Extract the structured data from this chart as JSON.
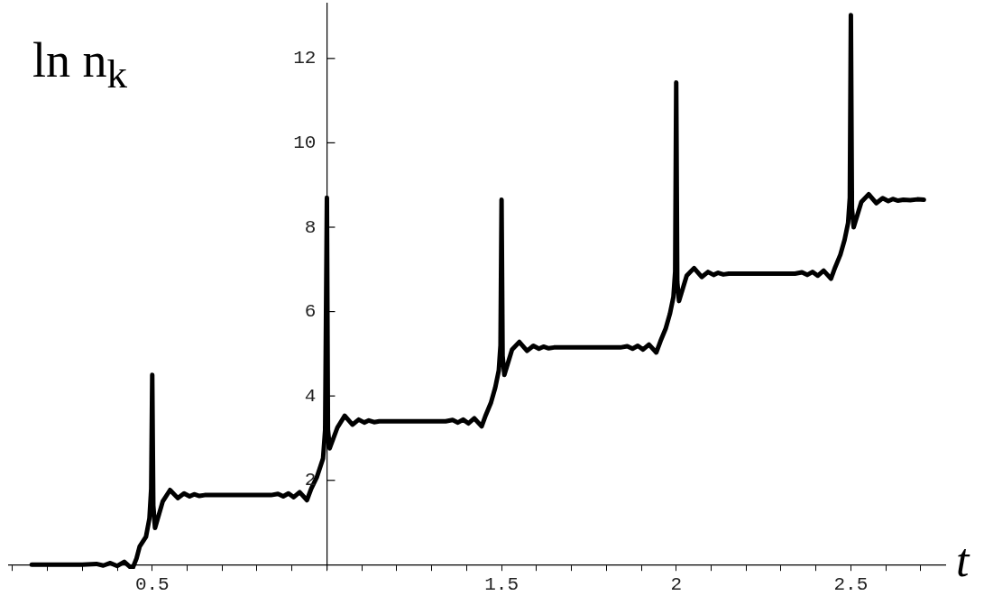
{
  "chart_data": {
    "type": "line",
    "xlabel": "t",
    "ylabel": "ln n$_{k}$",
    "x": [
      0.155,
      0.2,
      0.25,
      0.3,
      0.34,
      0.36,
      0.38,
      0.4,
      0.42,
      0.443,
      0.455,
      0.464,
      0.482,
      0.492,
      0.497,
      0.5,
      0.503,
      0.508,
      0.53,
      0.551,
      0.573,
      0.591,
      0.607,
      0.62,
      0.635,
      0.65,
      0.75,
      0.84,
      0.86,
      0.875,
      0.89,
      0.905,
      0.922,
      0.943,
      0.955,
      0.971,
      0.989,
      0.995,
      1.0,
      1.003,
      1.008,
      1.03,
      1.051,
      1.073,
      1.091,
      1.107,
      1.12,
      1.135,
      1.15,
      1.25,
      1.34,
      1.36,
      1.375,
      1.39,
      1.405,
      1.422,
      1.443,
      1.455,
      1.47,
      1.482,
      1.492,
      1.497,
      1.5,
      1.503,
      1.508,
      1.53,
      1.551,
      1.573,
      1.591,
      1.607,
      1.62,
      1.635,
      1.65,
      1.75,
      1.84,
      1.86,
      1.875,
      1.89,
      1.905,
      1.922,
      1.943,
      1.955,
      1.97,
      1.982,
      1.992,
      1.997,
      2.0,
      2.003,
      2.008,
      2.03,
      2.051,
      2.073,
      2.091,
      2.107,
      2.12,
      2.135,
      2.15,
      2.25,
      2.34,
      2.36,
      2.375,
      2.39,
      2.405,
      2.422,
      2.443,
      2.455,
      2.47,
      2.482,
      2.492,
      2.497,
      2.5,
      2.503,
      2.508,
      2.53,
      2.551,
      2.573,
      2.591,
      2.607,
      2.62,
      2.635,
      2.65,
      2.67,
      2.69,
      2.709
    ],
    "series": [
      {
        "color": "#000000",
        "values": [
          0,
          0,
          0,
          0,
          0.02,
          -0.02,
          0.04,
          -0.03,
          0.07,
          -0.1,
          0.15,
          0.43,
          0.66,
          1.1,
          1.8,
          4.5,
          1.4,
          0.87,
          1.5,
          1.77,
          1.58,
          1.69,
          1.62,
          1.67,
          1.63,
          1.65,
          1.65,
          1.65,
          1.68,
          1.62,
          1.69,
          1.6,
          1.72,
          1.53,
          1.8,
          2.07,
          2.52,
          3.2,
          8.7,
          3.2,
          2.76,
          3.25,
          3.53,
          3.32,
          3.44,
          3.37,
          3.42,
          3.38,
          3.4,
          3.4,
          3.4,
          3.43,
          3.37,
          3.44,
          3.35,
          3.47,
          3.28,
          3.55,
          3.85,
          4.2,
          4.6,
          5.2,
          8.65,
          4.95,
          4.5,
          5.1,
          5.28,
          5.07,
          5.19,
          5.12,
          5.17,
          5.13,
          5.15,
          5.15,
          5.15,
          5.18,
          5.12,
          5.19,
          5.1,
          5.22,
          5.03,
          5.3,
          5.6,
          5.95,
          6.35,
          6.95,
          11.43,
          6.7,
          6.25,
          6.85,
          7.03,
          6.82,
          6.94,
          6.87,
          6.92,
          6.88,
          6.9,
          6.9,
          6.9,
          6.93,
          6.87,
          6.94,
          6.85,
          6.97,
          6.78,
          7.05,
          7.35,
          7.7,
          8.1,
          8.7,
          13.03,
          8.45,
          8.0,
          8.6,
          8.78,
          8.57,
          8.69,
          8.62,
          8.67,
          8.63,
          8.65,
          8.64,
          8.66,
          8.65
        ]
      }
    ],
    "xlim": [
      0.09,
      2.77
    ],
    "ylim": [
      -0.1,
      13.3
    ],
    "xticks": [
      {
        "value": 0.1,
        "label": null
      },
      {
        "value": 0.2,
        "label": null
      },
      {
        "value": 0.3,
        "label": null
      },
      {
        "value": 0.4,
        "label": null
      },
      0.5,
      {
        "value": 0.6,
        "label": null
      },
      {
        "value": 0.7,
        "label": null
      },
      {
        "value": 0.8,
        "label": null
      },
      {
        "value": 0.9,
        "label": null
      },
      {
        "value": 1,
        "label": null
      },
      {
        "value": 1.1,
        "label": null
      },
      {
        "value": 1.2,
        "label": null
      },
      {
        "value": 1.3,
        "label": null
      },
      {
        "value": 1.4,
        "label": null
      },
      1.5,
      {
        "value": 1.6,
        "label": null
      },
      {
        "value": 1.7,
        "label": null
      },
      {
        "value": 1.8,
        "label": null
      },
      {
        "value": 1.9,
        "label": null
      },
      2,
      {
        "value": 2.1,
        "label": null
      },
      {
        "value": 2.2,
        "label": null
      },
      {
        "value": 2.3,
        "label": null
      },
      {
        "value": 2.4,
        "label": null
      },
      2.5,
      {
        "value": 2.6,
        "label": null
      },
      {
        "value": 2.7,
        "label": null
      }
    ],
    "yticks": [
      2,
      4,
      6,
      8,
      10,
      12
    ]
  }
}
